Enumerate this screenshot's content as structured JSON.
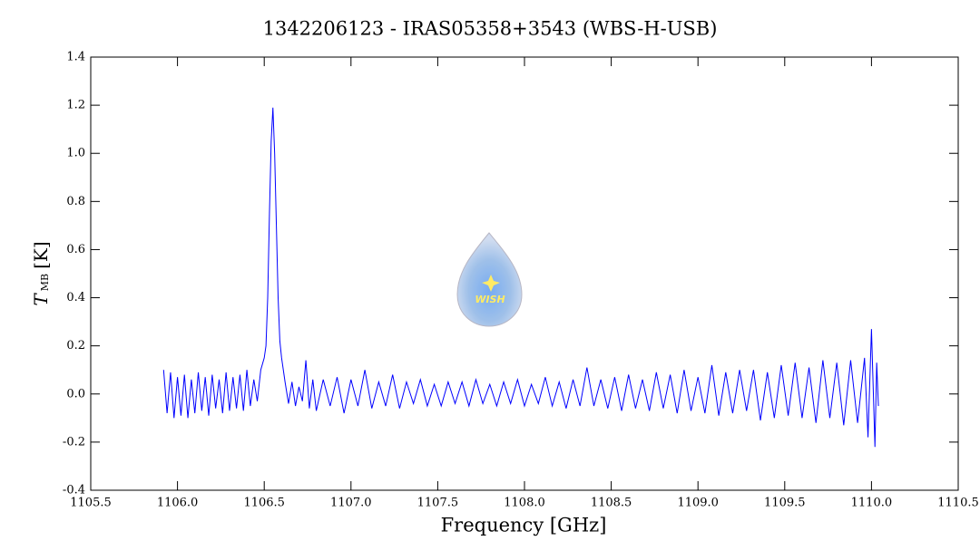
{
  "chart_data": {
    "type": "line",
    "title": "1342206123 - IRAS05358+3543 (WBS-H-USB)",
    "x_label": "Frequency [GHz]",
    "y_label": {
      "symbol": "T",
      "subscript": "MB",
      "unit": "[K]"
    },
    "watermark": "WISH",
    "color": "#0000ff",
    "xlim": [
      1105.5,
      1110.5
    ],
    "xticks": [
      1105.5,
      {
        "value": 1106,
        "label": "1106.0"
      },
      1106.5,
      {
        "value": 1107,
        "label": "1107.0"
      },
      1107.5,
      {
        "value": 1108,
        "label": "1108.0"
      },
      1108.5,
      {
        "value": 1109,
        "label": "1109.0"
      },
      1109.5,
      {
        "value": 1110,
        "label": "1110.0"
      },
      1110.5
    ],
    "ylim": [
      -0.4,
      1.4
    ],
    "yticks": [
      -0.4,
      -0.2,
      {
        "value": 0,
        "label": "0.0"
      },
      0.2,
      0.4,
      0.6,
      0.8,
      {
        "value": 1,
        "label": "1.0"
      },
      1.2,
      1.4
    ],
    "x": [
      1105.92,
      1105.94,
      1105.96,
      1105.98,
      1106.0,
      1106.02,
      1106.04,
      1106.06,
      1106.08,
      1106.1,
      1106.12,
      1106.14,
      1106.16,
      1106.18,
      1106.2,
      1106.22,
      1106.24,
      1106.26,
      1106.28,
      1106.3,
      1106.32,
      1106.34,
      1106.36,
      1106.38,
      1106.4,
      1106.42,
      1106.44,
      1106.46,
      1106.48,
      1106.5,
      1106.51,
      1106.52,
      1106.53,
      1106.54,
      1106.55,
      1106.56,
      1106.57,
      1106.58,
      1106.59,
      1106.6,
      1106.62,
      1106.64,
      1106.66,
      1106.68,
      1106.7,
      1106.72,
      1106.74,
      1106.76,
      1106.78,
      1106.8,
      1106.84,
      1106.88,
      1106.92,
      1106.96,
      1107.0,
      1107.04,
      1107.08,
      1107.12,
      1107.16,
      1107.2,
      1107.24,
      1107.28,
      1107.32,
      1107.36,
      1107.4,
      1107.44,
      1107.48,
      1107.52,
      1107.56,
      1107.6,
      1107.64,
      1107.68,
      1107.72,
      1107.76,
      1107.8,
      1107.84,
      1107.88,
      1107.92,
      1107.96,
      1108.0,
      1108.04,
      1108.08,
      1108.12,
      1108.16,
      1108.2,
      1108.24,
      1108.28,
      1108.32,
      1108.36,
      1108.4,
      1108.44,
      1108.48,
      1108.52,
      1108.56,
      1108.6,
      1108.64,
      1108.68,
      1108.72,
      1108.76,
      1108.8,
      1108.84,
      1108.88,
      1108.92,
      1108.96,
      1109.0,
      1109.04,
      1109.08,
      1109.12,
      1109.16,
      1109.2,
      1109.24,
      1109.28,
      1109.32,
      1109.36,
      1109.4,
      1109.44,
      1109.48,
      1109.52,
      1109.56,
      1109.6,
      1109.64,
      1109.68,
      1109.72,
      1109.76,
      1109.8,
      1109.84,
      1109.88,
      1109.92,
      1109.96,
      1109.98,
      1110.0,
      1110.02,
      1110.03,
      1110.04
    ],
    "values": [
      0.1,
      -0.08,
      0.09,
      -0.1,
      0.07,
      -0.09,
      0.08,
      -0.1,
      0.06,
      -0.08,
      0.09,
      -0.07,
      0.07,
      -0.09,
      0.08,
      -0.06,
      0.06,
      -0.08,
      0.09,
      -0.07,
      0.07,
      -0.06,
      0.08,
      -0.07,
      0.1,
      -0.05,
      0.06,
      -0.03,
      0.1,
      0.15,
      0.2,
      0.4,
      0.75,
      1.05,
      1.19,
      1.0,
      0.7,
      0.4,
      0.22,
      0.15,
      0.05,
      -0.04,
      0.05,
      -0.05,
      0.03,
      -0.03,
      0.14,
      -0.06,
      0.06,
      -0.07,
      0.06,
      -0.05,
      0.07,
      -0.08,
      0.06,
      -0.05,
      0.1,
      -0.06,
      0.05,
      -0.05,
      0.08,
      -0.06,
      0.05,
      -0.04,
      0.06,
      -0.05,
      0.04,
      -0.05,
      0.05,
      -0.04,
      0.05,
      -0.05,
      0.06,
      -0.04,
      0.04,
      -0.05,
      0.05,
      -0.04,
      0.06,
      -0.05,
      0.04,
      -0.04,
      0.07,
      -0.05,
      0.05,
      -0.06,
      0.06,
      -0.05,
      0.11,
      -0.05,
      0.06,
      -0.06,
      0.07,
      -0.07,
      0.08,
      -0.06,
      0.06,
      -0.07,
      0.09,
      -0.06,
      0.08,
      -0.08,
      0.1,
      -0.07,
      0.07,
      -0.08,
      0.12,
      -0.09,
      0.09,
      -0.08,
      0.1,
      -0.07,
      0.1,
      -0.11,
      0.09,
      -0.1,
      0.12,
      -0.09,
      0.13,
      -0.1,
      0.11,
      -0.12,
      0.14,
      -0.1,
      0.13,
      -0.13,
      0.14,
      -0.12,
      0.15,
      -0.18,
      0.27,
      -0.22,
      0.13,
      -0.05
    ]
  }
}
